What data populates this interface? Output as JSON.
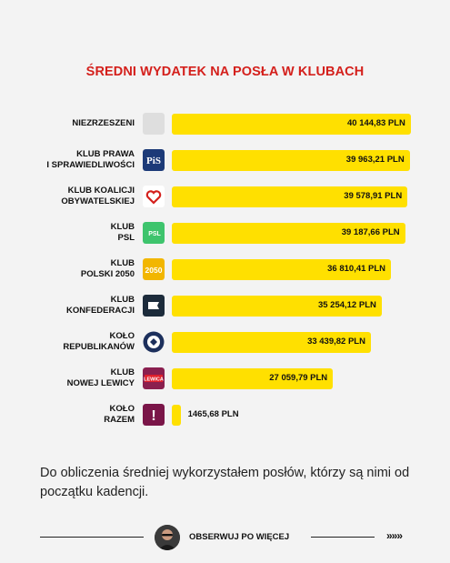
{
  "title": "ŚREDNI WYDATEK NA POSŁA W KLUBACH",
  "chart_data": {
    "type": "bar",
    "orientation": "horizontal",
    "categories": [
      "NIEZRZESZENI",
      "KLUB PRAWA\nI SPRAWIEDLIWOŚCI",
      "KLUB KOALICJI\nOBYWATELSKIEJ",
      "KLUB\nPSL",
      "KLUB\nPOLSKI 2050",
      "KLUB\nKONFEDERACJI",
      "KOŁO\nREPUBLIKANÓW",
      "KLUB\nNOWEJ LEWICY",
      "KOŁO\nRAZEM"
    ],
    "values": [
      40144.83,
      39963.21,
      39578.91,
      39187.66,
      36810.41,
      35254.12,
      33439.82,
      27059.79,
      1465.68
    ],
    "value_labels": [
      "40 144,83 PLN",
      "39 963,21 PLN",
      "39 578,91 PLN",
      "39 187,66 PLN",
      "36 810,41 PLN",
      "35 254,12 PLN",
      "33 439,82 PLN",
      "27 059,79 PLN",
      "1465,68 PLN"
    ],
    "logos": [
      "blank-logo",
      "pis-logo",
      "ko-heart-logo",
      "psl-logo",
      "polska2050-logo",
      "konfederacja-logo",
      "republikanie-eagle-logo",
      "lewica-logo",
      "razem-logo"
    ],
    "bar_color": "#ffe000",
    "xlim": [
      0,
      40144.83
    ]
  },
  "footnote": "Do obliczenia średniej wykorzystałem posłów, którzy są nimi od początku kadencji.",
  "footer": {
    "cta": "OBSERWUJ PO WIĘCEJ",
    "arrows": "»»»"
  },
  "logo_texts": {
    "psl": "PSL",
    "p2050": "2050",
    "lewica": "LEWICA",
    "razem": "!"
  },
  "colors": {
    "title": "#d4201c",
    "bar": "#ffe000",
    "background": "#f3f3f3"
  }
}
